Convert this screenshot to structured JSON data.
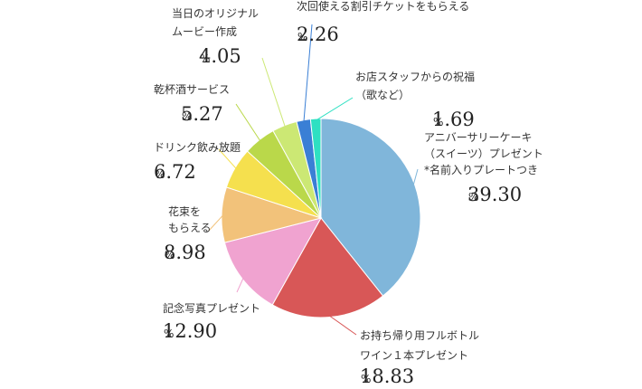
{
  "chart_data": {
    "type": "pie",
    "unit": "%",
    "slices": [
      {
        "lines": [
          "アニバーサリーケーキ",
          "（スイーツ）プレゼント",
          "*名前入りプレートつき"
        ],
        "value": 39.3,
        "display": "39.30",
        "color": "#80b6da"
      },
      {
        "lines": [
          "お持ち帰り用フルボトル",
          "ワイン１本プレゼント"
        ],
        "value": 18.83,
        "display": "18.83",
        "color": "#d85757"
      },
      {
        "lines": [
          "記念写真プレゼント"
        ],
        "value": 12.9,
        "display": "12.90",
        "color": "#f0a3d0"
      },
      {
        "lines": [
          "花束を",
          "もらえる"
        ],
        "value": 8.98,
        "display": "8.98",
        "color": "#f2c27a"
      },
      {
        "lines": [
          "ドリンク飲み放題"
        ],
        "value": 6.72,
        "display": "6.72",
        "color": "#f5e04e"
      },
      {
        "lines": [
          "乾杯酒サービス"
        ],
        "value": 5.27,
        "display": "5.27",
        "color": "#bad84a"
      },
      {
        "lines": [
          "当日のオリジナル",
          "ムービー作成"
        ],
        "value": 4.05,
        "display": "4.05",
        "color": "#cce874"
      },
      {
        "lines": [
          "次回使える割引チケットをもらえる"
        ],
        "value": 2.26,
        "display": "2.26",
        "color": "#3a7fd5"
      },
      {
        "lines": [
          "お店スタッフからの祝福",
          "（歌など）"
        ],
        "value": 1.69,
        "display": "1.69",
        "color": "#2ee0c2"
      }
    ]
  }
}
